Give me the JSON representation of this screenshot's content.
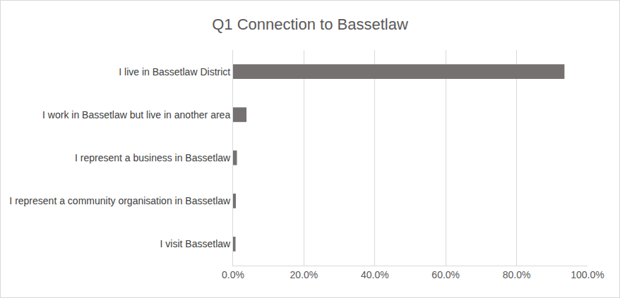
{
  "chart_data": {
    "type": "bar",
    "orientation": "horizontal",
    "title": "Q1 Connection to Bassetlaw",
    "categories": [
      "I live in Bassetlaw District",
      "I work in Bassetlaw but live in another area",
      "I represent a business in Bassetlaw",
      "I represent a community organisation in Bassetlaw",
      "I visit Bassetlaw"
    ],
    "values": [
      93.5,
      3.8,
      1.1,
      0.8,
      0.7
    ],
    "color": "#767171",
    "xlim": [
      0,
      100
    ],
    "xticks": [
      {
        "value": 0,
        "label": "0.0%"
      },
      {
        "value": 20,
        "label": "20.0%"
      },
      {
        "value": 40,
        "label": "40.0%"
      },
      {
        "value": 60,
        "label": "60.0%"
      },
      {
        "value": 80,
        "label": "80.0%"
      },
      {
        "value": 100,
        "label": "100.0%"
      }
    ],
    "grid": true
  }
}
